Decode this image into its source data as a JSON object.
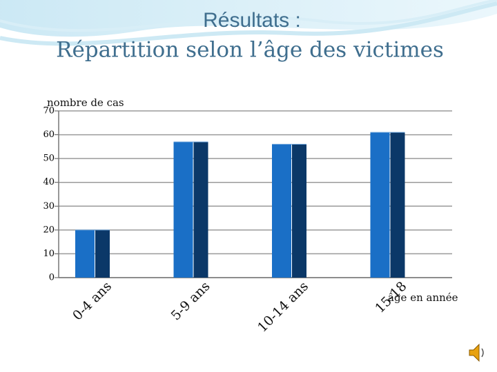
{
  "chart_data": {
    "type": "bar3d",
    "title": "Résultats :",
    "subtitle": "Répartition selon l’âge des victimes",
    "y_label": "nombre de cas",
    "x_label": "âge en année",
    "categories": [
      "0-4 ans",
      "5-9 ans",
      "10-14 ans",
      "15-18"
    ],
    "values": [
      20,
      57,
      56,
      61
    ],
    "color": "#1a6fc6",
    "side_color": "#0b3868",
    "ylim": [
      0,
      70
    ],
    "yticks": [
      0,
      10,
      20,
      30,
      40,
      50,
      60,
      70
    ],
    "grid": true
  }
}
